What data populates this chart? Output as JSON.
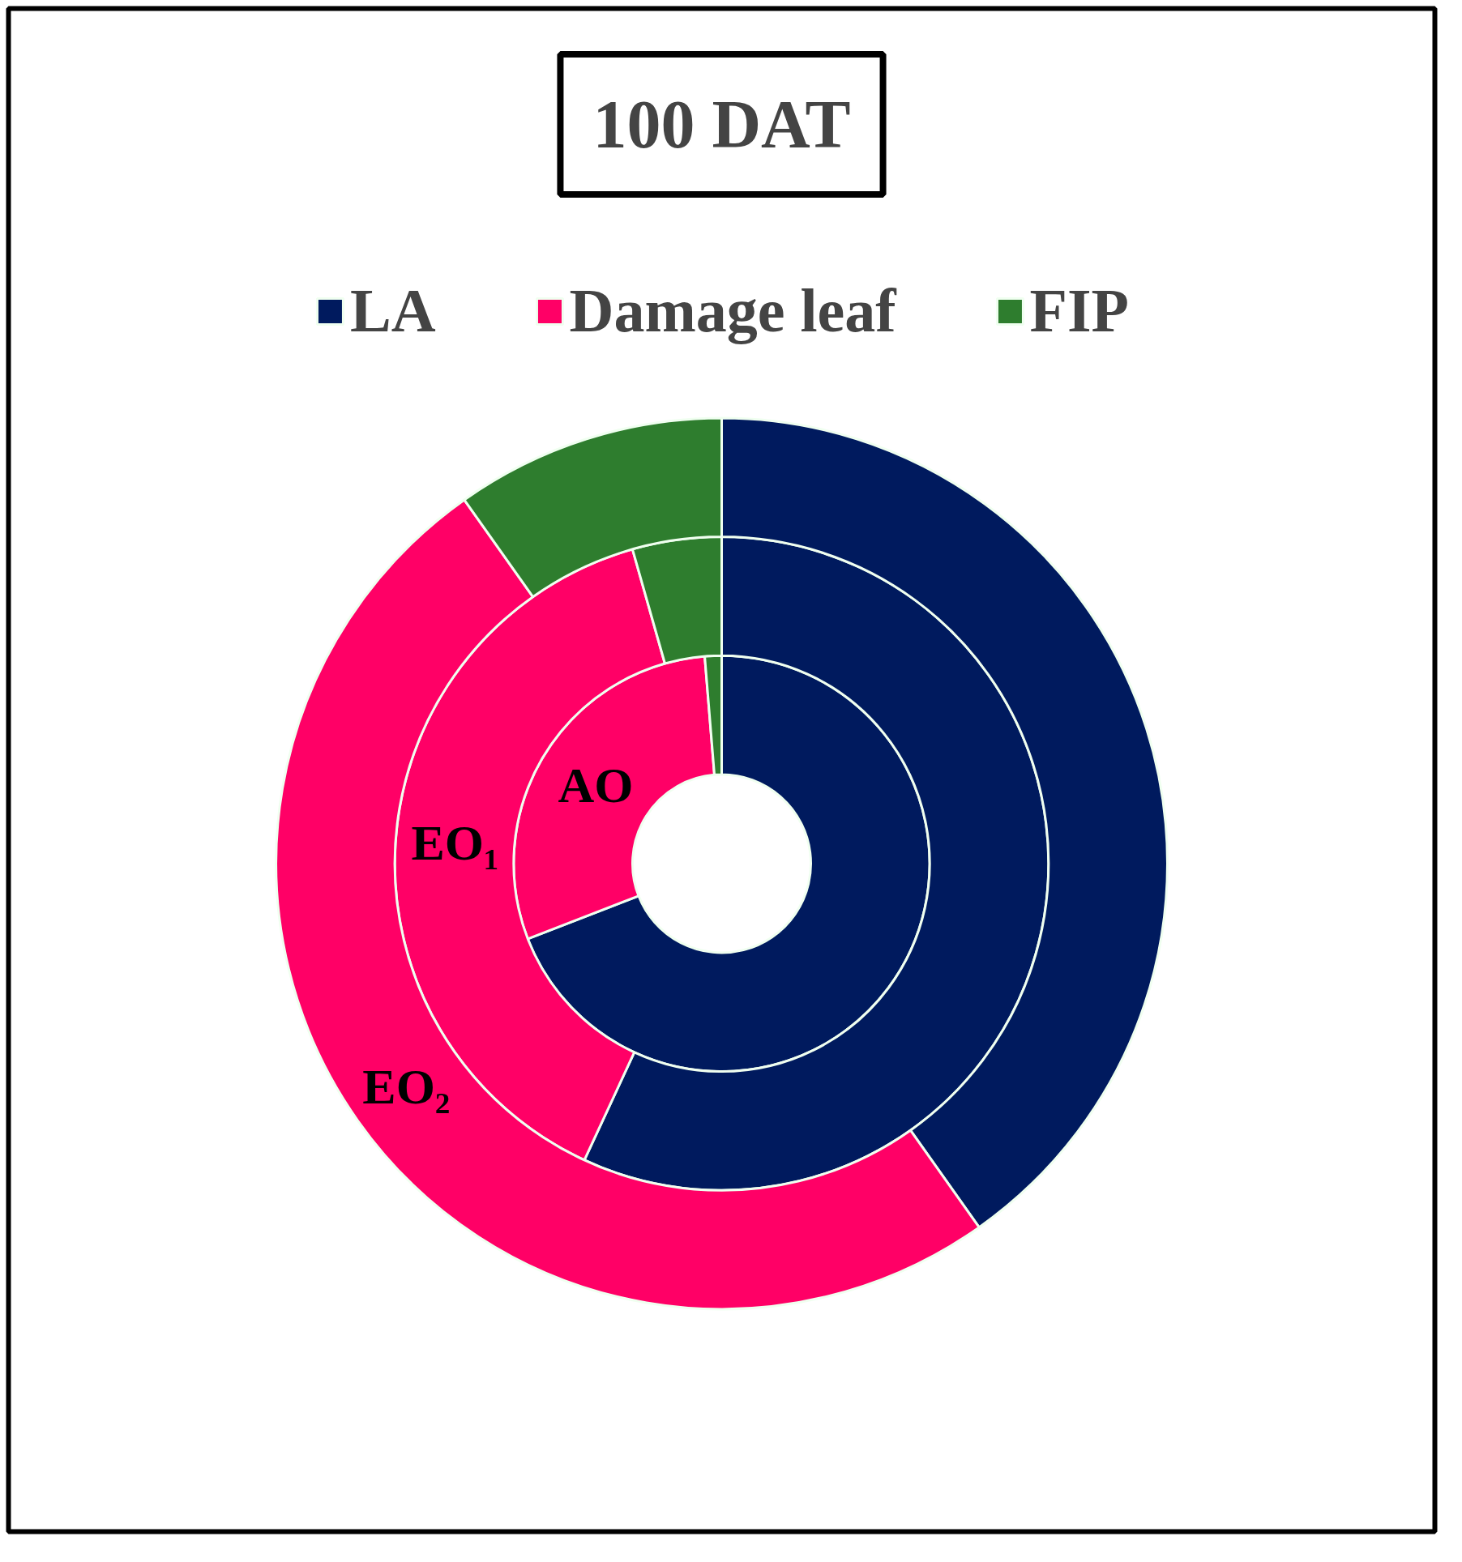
{
  "chart_data": {
    "type": "donut",
    "title": "100 DAT",
    "categories": [
      "LA",
      "Damage leaf",
      "FIP"
    ],
    "colors": [
      "#001a5e",
      "#ff0066",
      "#2e7d2e"
    ],
    "legend": "top",
    "series": [
      {
        "name": "AO",
        "values": [
          69.1,
          29.6,
          1.3
        ]
      },
      {
        "name": "EO₁",
        "values": [
          56.9,
          38.7,
          4.4
        ]
      },
      {
        "name": "EO₂",
        "values": [
          40.2,
          50.0,
          9.8
        ]
      }
    ]
  }
}
